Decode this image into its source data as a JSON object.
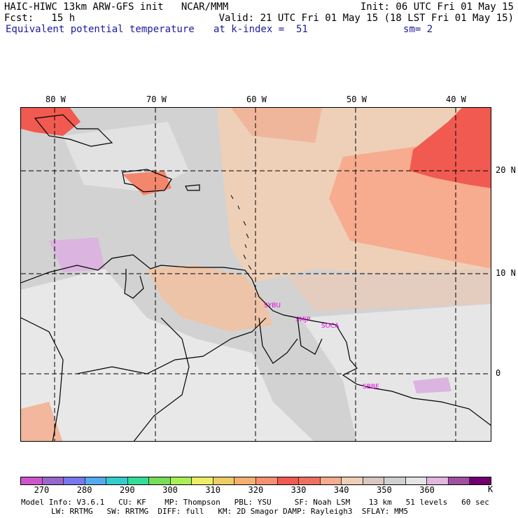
{
  "header": {
    "line1_left": "HAIC-HIWC 13km ARW-GFS init   NCAR/MMM",
    "line1_right": "Init: 06 UTC Fri 01 May 15",
    "line2_left": "Fcst:   15 h",
    "line2_right": "Valid: 21 UTC Fri 01 May 15 (18 LST Fri 01 May 15)",
    "line3_field": "Equivalent potential temperature",
    "line3_level": "at k-index =  51",
    "line3_sm": "sm= 2"
  },
  "map": {
    "lon_labels": [
      "80 W",
      "70 W",
      "60 W",
      "50 W",
      "40 W"
    ],
    "lat_labels": [
      "20 N",
      "10 N",
      "0"
    ],
    "sites": [
      "SYBU",
      "SMJP",
      "SOCA",
      "SBBE"
    ],
    "colors": {
      "background_light": "#e6e6e6",
      "background_mid": "#cdcdcd",
      "warm_peach": "#eed0b8",
      "salmon": "#f7ab8f",
      "red": "#f05a50",
      "lavender": "#dcb4e0",
      "site_label": "#e000e0",
      "coastline": "#000000"
    }
  },
  "colorbar": {
    "colors": [
      "#cc55cc",
      "#9966cc",
      "#7777ee",
      "#55aaee",
      "#33cccc",
      "#33dd99",
      "#77dd55",
      "#aaee55",
      "#eeee66",
      "#eecc66",
      "#f5b070",
      "#f59070",
      "#f05a50",
      "#f07060",
      "#f7ab8f",
      "#eed0b8",
      "#d8c8c0",
      "#d0d0d0",
      "#e4e4e4",
      "#e0b8e0",
      "#a050a0",
      "#700070"
    ],
    "labels": [
      "270",
      "280",
      "290",
      "300",
      "310",
      "320",
      "330",
      "340",
      "350",
      "360"
    ],
    "unit": "K"
  },
  "footer": {
    "line1": "Model Info: V3.6.1   CU: KF    MP: Thompson   PBL: YSU     SF: Noah LSM    13 km   51 levels   60 sec",
    "line2": "LW: RRTMG   SW: RRTMG  DIFF: full   KM: 2D Smagor DAMP: Rayleigh3  SFLAY: MM5"
  }
}
